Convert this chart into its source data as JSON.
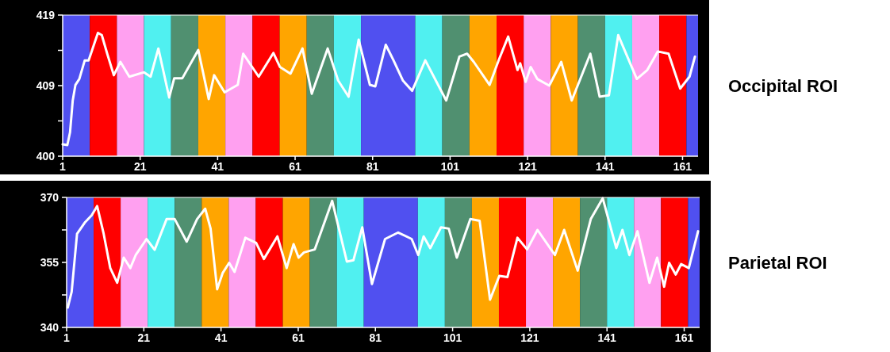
{
  "chart_data": [
    {
      "type": "line",
      "annotations": [
        "Occipital ROI"
      ],
      "xlim": [
        1,
        165
      ],
      "xticks": [
        1,
        21,
        41,
        61,
        81,
        101,
        121,
        141,
        161
      ],
      "ylim": [
        400,
        419
      ],
      "yticks": [
        400,
        {
          "value": 404.75,
          "label": null
        },
        {
          "value": 409.5,
          "label": "409"
        },
        {
          "value": 414.25,
          "label": null
        },
        419
      ],
      "grid": false,
      "marker": "none",
      "line_style": "solid",
      "bands": [
        {
          "axis": "x",
          "from": 1,
          "to": 8,
          "color": "#5050f0"
        },
        {
          "axis": "x",
          "from": 8,
          "to": 15,
          "color": "#ff0000"
        },
        {
          "axis": "x",
          "from": 15,
          "to": 22,
          "color": "#ffa0f0"
        },
        {
          "axis": "x",
          "from": 22,
          "to": 29,
          "color": "#50f0f0"
        },
        {
          "axis": "x",
          "from": 29,
          "to": 36,
          "color": "#509070"
        },
        {
          "axis": "x",
          "from": 36,
          "to": 43,
          "color": "#ffa500"
        },
        {
          "axis": "x",
          "from": 43,
          "to": 50,
          "color": "#ffa0f0"
        },
        {
          "axis": "x",
          "from": 50,
          "to": 57,
          "color": "#ff0000"
        },
        {
          "axis": "x",
          "from": 57,
          "to": 64,
          "color": "#ffa500"
        },
        {
          "axis": "x",
          "from": 64,
          "to": 71,
          "color": "#509070"
        },
        {
          "axis": "x",
          "from": 71,
          "to": 78,
          "color": "#50f0f0"
        },
        {
          "axis": "x",
          "from": 78,
          "to": 92,
          "color": "#5050f0"
        },
        {
          "axis": "x",
          "from": 92,
          "to": 99,
          "color": "#50f0f0"
        },
        {
          "axis": "x",
          "from": 99,
          "to": 106,
          "color": "#509070"
        },
        {
          "axis": "x",
          "from": 106,
          "to": 113,
          "color": "#ffa500"
        },
        {
          "axis": "x",
          "from": 113,
          "to": 120,
          "color": "#ff0000"
        },
        {
          "axis": "x",
          "from": 120,
          "to": 127,
          "color": "#ffa0f0"
        },
        {
          "axis": "x",
          "from": 127,
          "to": 134,
          "color": "#ffa500"
        },
        {
          "axis": "x",
          "from": 134,
          "to": 141,
          "color": "#509070"
        },
        {
          "axis": "x",
          "from": 141,
          "to": 148,
          "color": "#50f0f0"
        },
        {
          "axis": "x",
          "from": 148,
          "to": 155,
          "color": "#ffa0f0"
        },
        {
          "axis": "x",
          "from": 155,
          "to": 162,
          "color": "#ff0000"
        },
        {
          "axis": "x",
          "from": 162,
          "to": 165,
          "color": "#5050f0"
        }
      ],
      "series": [
        {
          "color": "#ffffff",
          "x": [
            1,
            2.2,
            2.9,
            3.6,
            4.3,
            5.3,
            6.7,
            7.7,
            10.1,
            11.1,
            12.5,
            14.2,
            15.9,
            18.2,
            22,
            23.7,
            25.7,
            28.5,
            29.8,
            31.9,
            36,
            38.7,
            40.1,
            42.8,
            46.2,
            47.6,
            51.6,
            55.4,
            57.1,
            59.8,
            62.9,
            65.3,
            69.4,
            72.1,
            74.8,
            77.4,
            80.3,
            81.7,
            84.4,
            86.4,
            88.8,
            91.2,
            94.6,
            100,
            103.4,
            105.4,
            107.1,
            111.2,
            113.6,
            116,
            118.4,
            119.1,
            120.5,
            121.8,
            123.5,
            126.6,
            129.7,
            132.4,
            137.2,
            139.6,
            142,
            144.4,
            149.2,
            151.9,
            154.6,
            157.4,
            160.4,
            162.8,
            164.2
          ],
          "values": [
            401.6,
            401.5,
            403.2,
            407.5,
            409.6,
            410.4,
            412.9,
            412.9,
            416.6,
            416.3,
            413.8,
            410.9,
            412.7,
            410.7,
            411.3,
            410.7,
            414.5,
            407.9,
            410.5,
            410.5,
            414.3,
            407.7,
            410.9,
            408.6,
            409.6,
            413.8,
            410.7,
            413.9,
            412,
            411.1,
            414.5,
            408.4,
            414.5,
            410.2,
            408,
            415.7,
            409.6,
            409.4,
            415,
            412.9,
            410.2,
            408.8,
            412.9,
            407.5,
            413.4,
            413.8,
            412.7,
            409.6,
            413,
            416.1,
            411.6,
            412.5,
            410,
            412,
            410.4,
            409.5,
            412.7,
            407.5,
            413.8,
            408,
            408.2,
            416.3,
            410.4,
            411.6,
            414.1,
            413.8,
            409.1,
            410.7,
            413.4
          ]
        }
      ]
    },
    {
      "type": "line",
      "annotations": [
        "Parietal ROI"
      ],
      "xlim": [
        1,
        165
      ],
      "xticks": [
        1,
        21,
        41,
        61,
        81,
        101,
        121,
        141,
        161
      ],
      "ylim": [
        340,
        370
      ],
      "yticks": [
        340,
        {
          "value": 347.5,
          "label": null
        },
        355,
        {
          "value": 362.5,
          "label": null
        },
        370
      ],
      "grid": false,
      "marker": "none",
      "line_style": "solid",
      "bands": [
        {
          "axis": "x",
          "from": 1,
          "to": 8,
          "color": "#5050f0"
        },
        {
          "axis": "x",
          "from": 8,
          "to": 15,
          "color": "#ff0000"
        },
        {
          "axis": "x",
          "from": 15,
          "to": 22,
          "color": "#ffa0f0"
        },
        {
          "axis": "x",
          "from": 22,
          "to": 29,
          "color": "#50f0f0"
        },
        {
          "axis": "x",
          "from": 29,
          "to": 36,
          "color": "#509070"
        },
        {
          "axis": "x",
          "from": 36,
          "to": 43,
          "color": "#ffa500"
        },
        {
          "axis": "x",
          "from": 43,
          "to": 50,
          "color": "#ffa0f0"
        },
        {
          "axis": "x",
          "from": 50,
          "to": 57,
          "color": "#ff0000"
        },
        {
          "axis": "x",
          "from": 57,
          "to": 64,
          "color": "#ffa500"
        },
        {
          "axis": "x",
          "from": 64,
          "to": 71,
          "color": "#509070"
        },
        {
          "axis": "x",
          "from": 71,
          "to": 78,
          "color": "#50f0f0"
        },
        {
          "axis": "x",
          "from": 78,
          "to": 92,
          "color": "#5050f0"
        },
        {
          "axis": "x",
          "from": 92,
          "to": 99,
          "color": "#50f0f0"
        },
        {
          "axis": "x",
          "from": 99,
          "to": 106,
          "color": "#509070"
        },
        {
          "axis": "x",
          "from": 106,
          "to": 113,
          "color": "#ffa500"
        },
        {
          "axis": "x",
          "from": 113,
          "to": 120,
          "color": "#ff0000"
        },
        {
          "axis": "x",
          "from": 120,
          "to": 127,
          "color": "#ffa0f0"
        },
        {
          "axis": "x",
          "from": 127,
          "to": 134,
          "color": "#ffa500"
        },
        {
          "axis": "x",
          "from": 134,
          "to": 141,
          "color": "#509070"
        },
        {
          "axis": "x",
          "from": 141,
          "to": 148,
          "color": "#50f0f0"
        },
        {
          "axis": "x",
          "from": 148,
          "to": 155,
          "color": "#ffa0f0"
        },
        {
          "axis": "x",
          "from": 155,
          "to": 162,
          "color": "#ff0000"
        },
        {
          "axis": "x",
          "from": 162,
          "to": 165,
          "color": "#5050f0"
        }
      ],
      "series": [
        {
          "color": "#ffffff",
          "x": [
            1.3,
            2.3,
            3.7,
            5.8,
            7.5,
            8.9,
            10.6,
            12.3,
            14.1,
            15.8,
            17.5,
            18.9,
            21.7,
            23.8,
            26.9,
            29,
            32.1,
            34.8,
            36.9,
            38.3,
            40,
            41.4,
            43.1,
            44.5,
            47.3,
            50.1,
            52.1,
            55.6,
            58,
            59.8,
            61.1,
            62.5,
            65.3,
            69.8,
            73.6,
            75.3,
            77.6,
            80.1,
            83.5,
            86.9,
            90.4,
            92.1,
            93.5,
            95.2,
            98,
            100,
            102.1,
            105.6,
            108,
            110.7,
            113.1,
            115.2,
            117.8,
            120.3,
            123,
            127.5,
            129.9,
            133.4,
            136.8,
            139.9,
            143.4,
            145,
            146.8,
            148.9,
            152,
            154,
            155.8,
            157.1,
            158.8,
            160.2,
            162.2,
            164.6
          ],
          "values": [
            344.6,
            348.2,
            361.6,
            364.3,
            365.9,
            368,
            361.6,
            353.7,
            350.3,
            356.1,
            353.7,
            356.7,
            360.4,
            357.9,
            365,
            365,
            359.8,
            365,
            367.4,
            362.8,
            348.8,
            352.5,
            354.9,
            352.8,
            360.7,
            359.5,
            355.8,
            361,
            353.7,
            359.2,
            356.1,
            357.3,
            358,
            369.2,
            355.2,
            355.5,
            363.1,
            350,
            360.4,
            361.9,
            360.4,
            356.7,
            361,
            358.3,
            363.1,
            362.8,
            356.1,
            365,
            364.6,
            346.4,
            351.9,
            351.6,
            360.7,
            358,
            362.5,
            356.7,
            362.5,
            353.1,
            365,
            369.8,
            358.3,
            362.5,
            356.7,
            362.2,
            350.3,
            356.1,
            349.4,
            354.9,
            352.2,
            354.6,
            353.7,
            362.2
          ]
        }
      ]
    }
  ]
}
